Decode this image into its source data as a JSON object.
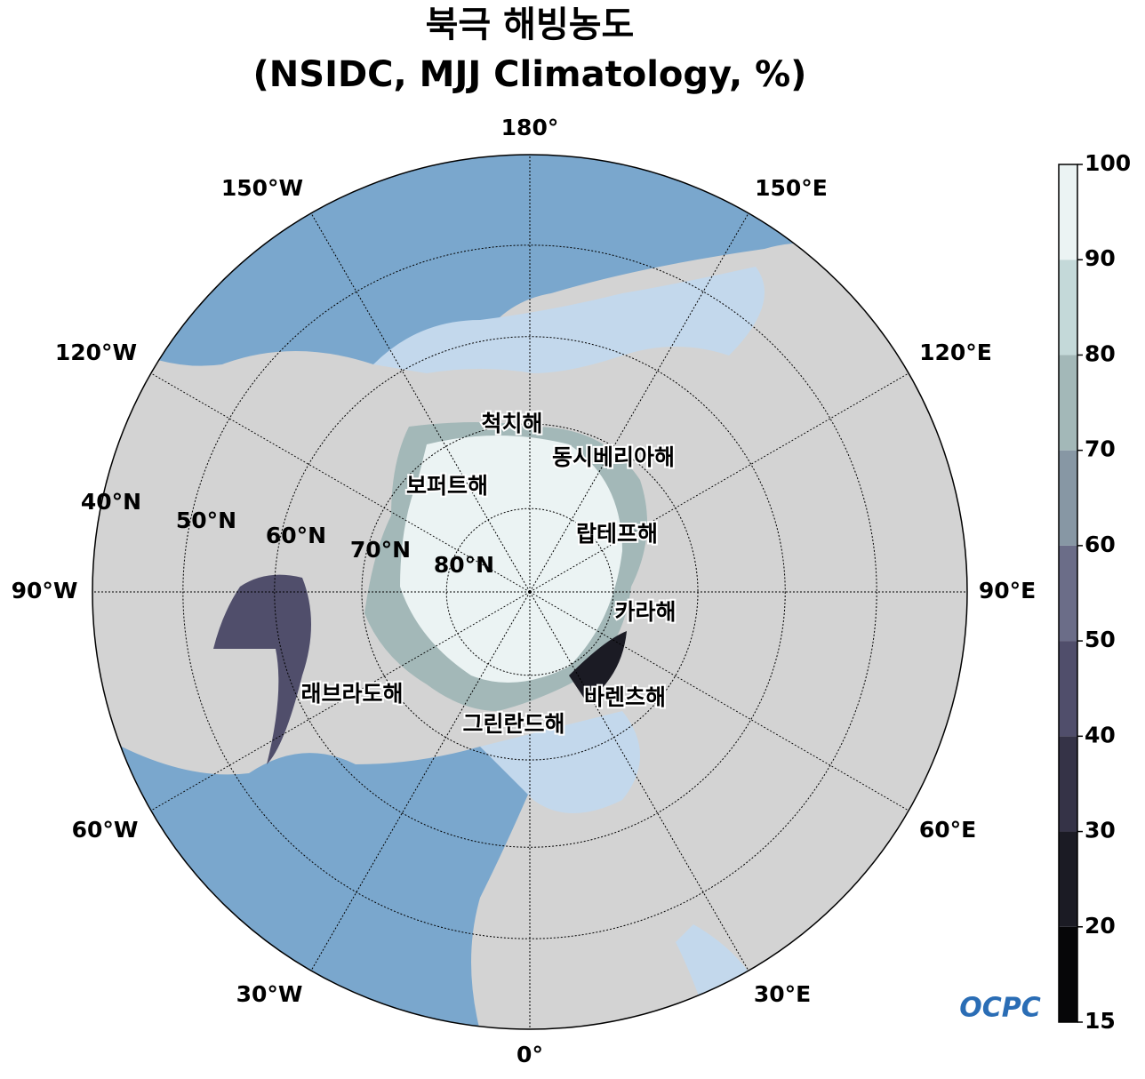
{
  "title": [
    "북극 해빙농도",
    "(NSIDC, MJJ Climatology, %)"
  ],
  "lon_labels": [
    "180°",
    "150°E",
    "120°E",
    "90°E",
    "60°E",
    "30°E",
    "0°",
    "30°W",
    "60°W",
    "90°W",
    "120°W",
    "150°W"
  ],
  "lat_labels": [
    "80°N",
    "70°N",
    "60°N",
    "50°N",
    "40°N"
  ],
  "sea_labels": [
    "척치해",
    "동시베리아해",
    "보퍼트해",
    "랍테프해",
    "카라해",
    "바렌츠해",
    "그린란드해",
    "래브라도해"
  ],
  "colorbar": {
    "ticks": [
      15,
      20,
      30,
      40,
      50,
      60,
      70,
      80,
      90,
      100
    ],
    "colors": [
      "#060608",
      "#1b1b24",
      "#353347",
      "#504e6b",
      "#6b6d88",
      "#8797a4",
      "#a3b8b8",
      "#c4d9d9",
      "#ebf3f3"
    ]
  },
  "logo": "OCPC"
}
